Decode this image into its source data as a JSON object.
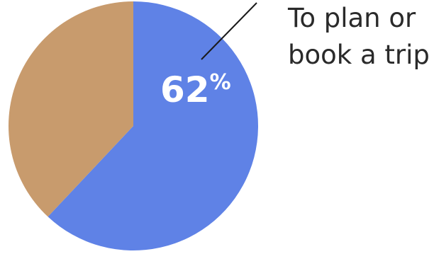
{
  "chart_data": {
    "type": "pie",
    "slices": [
      {
        "name": "To plan or book a trip",
        "value": 62,
        "color": "#5f82e6"
      },
      {
        "name": "",
        "value": 38,
        "color": "#c89b6d"
      }
    ],
    "data_labels": [
      {
        "number": "62",
        "unit": "%"
      }
    ],
    "annotation": {
      "lines": [
        "To plan or",
        "book a trip"
      ]
    }
  }
}
